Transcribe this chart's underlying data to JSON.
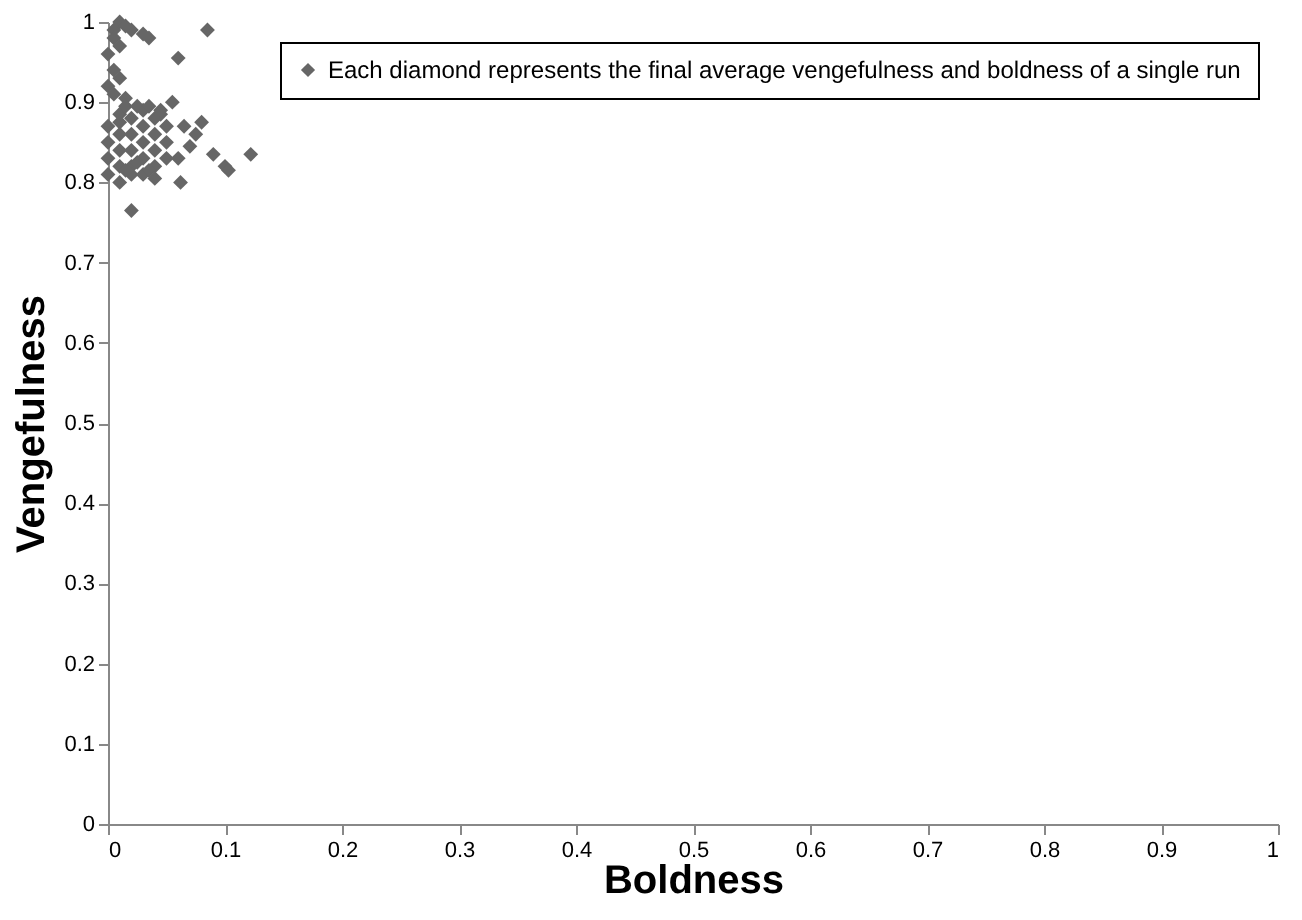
{
  "chart_data": {
    "type": "scatter",
    "xlabel": "Boldness",
    "ylabel": "Vengefulness",
    "xlim": [
      0,
      1
    ],
    "ylim": [
      0,
      1
    ],
    "xticks": [
      0,
      0.1,
      0.2,
      0.3,
      0.4,
      0.5,
      0.6,
      0.7,
      0.8,
      0.9,
      1
    ],
    "yticks": [
      0,
      0.1,
      0.2,
      0.3,
      0.4,
      0.5,
      0.6,
      0.7,
      0.8,
      0.9,
      1
    ],
    "grid": false,
    "legend": "top right",
    "marker": "diamond",
    "series": [
      {
        "name": "Each diamond represents the final average vengefulness and boldness of a single run",
        "color": "#666666",
        "x": [
          0.005,
          0.01,
          0.015,
          0.005,
          0.01,
          0.0,
          0.005,
          0.01,
          0.0,
          0.02,
          0.03,
          0.035,
          0.085,
          0.06,
          0.005,
          0.015,
          0.01,
          0.0,
          0.0,
          0.0,
          0.0,
          0.01,
          0.01,
          0.01,
          0.01,
          0.01,
          0.02,
          0.02,
          0.02,
          0.02,
          0.02,
          0.03,
          0.03,
          0.03,
          0.03,
          0.03,
          0.04,
          0.04,
          0.04,
          0.04,
          0.05,
          0.05,
          0.05,
          0.015,
          0.025,
          0.035,
          0.045,
          0.015,
          0.025,
          0.035,
          0.075,
          0.08,
          0.09,
          0.1,
          0.103,
          0.122,
          0.062,
          0.055,
          0.045,
          0.02,
          0.07,
          0.065,
          0.06,
          0.04
        ],
        "values": [
          0.99,
          1.0,
          0.995,
          0.98,
          0.97,
          0.96,
          0.94,
          0.93,
          0.92,
          0.99,
          0.985,
          0.98,
          0.99,
          0.955,
          0.91,
          0.905,
          0.885,
          0.87,
          0.85,
          0.83,
          0.81,
          0.86,
          0.84,
          0.82,
          0.8,
          0.875,
          0.88,
          0.86,
          0.84,
          0.82,
          0.81,
          0.89,
          0.87,
          0.85,
          0.83,
          0.81,
          0.88,
          0.86,
          0.84,
          0.82,
          0.87,
          0.85,
          0.83,
          0.895,
          0.895,
          0.895,
          0.885,
          0.815,
          0.825,
          0.815,
          0.86,
          0.875,
          0.835,
          0.82,
          0.815,
          0.835,
          0.8,
          0.9,
          0.89,
          0.765,
          0.845,
          0.87,
          0.83,
          0.805
        ]
      }
    ]
  }
}
